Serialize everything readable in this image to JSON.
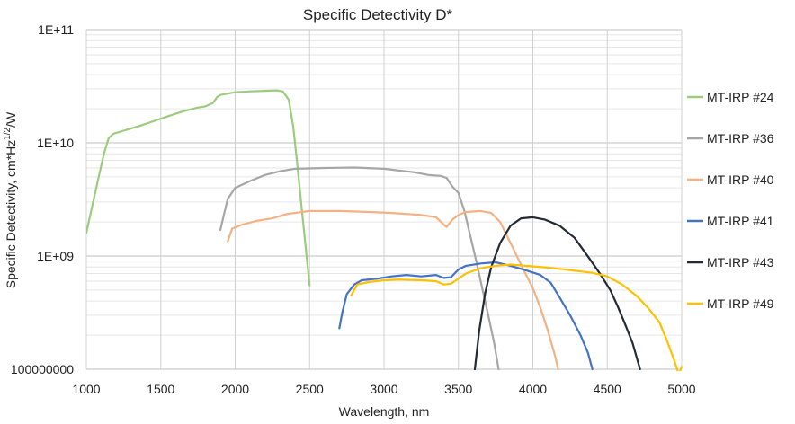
{
  "chart_data": {
    "type": "line",
    "title": "Specific Detectivity D*",
    "xlabel": "Wavelength, nm",
    "ylabel_parts": [
      "Specific Detectivity, cm*Hz",
      "1/2",
      "/W"
    ],
    "xlim": [
      1000,
      5000
    ],
    "ylim": [
      100000000,
      100000000000
    ],
    "yscale": "log",
    "x_ticks": [
      1000,
      1500,
      2000,
      2500,
      3000,
      3500,
      4000,
      4500,
      5000
    ],
    "x_tick_labels": [
      "1000",
      "1500",
      "2000",
      "2500",
      "3000",
      "3500",
      "4000",
      "4500",
      "5000"
    ],
    "y_tick_labels": [
      "100000000",
      "1E+09",
      "1E+10",
      "1E+11"
    ],
    "grid": true,
    "legend_position": "right",
    "series": [
      {
        "name": "MT-IRP #24",
        "color": "#9DCB7E",
        "points": [
          [
            1000,
            1600000000.0
          ],
          [
            1020,
            2100000000.0
          ],
          [
            1050,
            3200000000.0
          ],
          [
            1080,
            4800000000.0
          ],
          [
            1120,
            8200000000.0
          ],
          [
            1150,
            11000000000.0
          ],
          [
            1180,
            12000000000.0
          ],
          [
            1250,
            12800000000.0
          ],
          [
            1350,
            14000000000.0
          ],
          [
            1450,
            15500000000.0
          ],
          [
            1550,
            17200000000.0
          ],
          [
            1650,
            19000000000.0
          ],
          [
            1750,
            20500000000.0
          ],
          [
            1800,
            21000000000.0
          ],
          [
            1850,
            22500000000.0
          ],
          [
            1880,
            25500000000.0
          ],
          [
            1900,
            26500000000.0
          ],
          [
            1950,
            27200000000.0
          ],
          [
            2000,
            28000000000.0
          ],
          [
            2100,
            28500000000.0
          ],
          [
            2200,
            28800000000.0
          ],
          [
            2280,
            29000000000.0
          ],
          [
            2320,
            28500000000.0
          ],
          [
            2360,
            24000000000.0
          ],
          [
            2390,
            14000000000.0
          ],
          [
            2420,
            6000000000.0
          ],
          [
            2450,
            2400000000.0
          ],
          [
            2480,
            1000000000.0
          ],
          [
            2500,
            550000000.0
          ]
        ]
      },
      {
        "name": "MT-IRP #36",
        "color": "#A6A6A6",
        "points": [
          [
            1900,
            1700000000.0
          ],
          [
            1920,
            2200000000.0
          ],
          [
            1950,
            3200000000.0
          ],
          [
            2000,
            4000000000.0
          ],
          [
            2100,
            4600000000.0
          ],
          [
            2200,
            5200000000.0
          ],
          [
            2300,
            5600000000.0
          ],
          [
            2400,
            5900000000.0
          ],
          [
            2600,
            6000000000.0
          ],
          [
            2800,
            6050000000.0
          ],
          [
            3000,
            5900000000.0
          ],
          [
            3100,
            5700000000.0
          ],
          [
            3200,
            5500000000.0
          ],
          [
            3300,
            5200000000.0
          ],
          [
            3380,
            5100000000.0
          ],
          [
            3420,
            4900000000.0
          ],
          [
            3460,
            4100000000.0
          ],
          [
            3500,
            3600000000.0
          ],
          [
            3540,
            2500000000.0
          ],
          [
            3580,
            1500000000.0
          ],
          [
            3620,
            900000000.0
          ],
          [
            3660,
            520000000.0
          ],
          [
            3700,
            300000000.0
          ],
          [
            3740,
            170000000.0
          ],
          [
            3770,
            100000000.0
          ]
        ]
      },
      {
        "name": "MT-IRP #40",
        "color": "#F4B183",
        "points": [
          [
            1950,
            1350000000.0
          ],
          [
            1980,
            1750000000.0
          ],
          [
            2050,
            1900000000.0
          ],
          [
            2150,
            2050000000.0
          ],
          [
            2250,
            2150000000.0
          ],
          [
            2350,
            2350000000.0
          ],
          [
            2500,
            2500000000.0
          ],
          [
            2700,
            2500000000.0
          ],
          [
            2900,
            2450000000.0
          ],
          [
            3050,
            2400000000.0
          ],
          [
            3150,
            2350000000.0
          ],
          [
            3250,
            2300000000.0
          ],
          [
            3350,
            2200000000.0
          ],
          [
            3420,
            1800000000.0
          ],
          [
            3460,
            2100000000.0
          ],
          [
            3500,
            2300000000.0
          ],
          [
            3550,
            2450000000.0
          ],
          [
            3650,
            2500000000.0
          ],
          [
            3720,
            2400000000.0
          ],
          [
            3780,
            2000000000.0
          ],
          [
            3850,
            1300000000.0
          ],
          [
            3900,
            950000000.0
          ],
          [
            3950,
            700000000.0
          ],
          [
            4000,
            520000000.0
          ],
          [
            4050,
            350000000.0
          ],
          [
            4100,
            220000000.0
          ],
          [
            4150,
            130000000.0
          ],
          [
            4170,
            100000000.0
          ]
        ]
      },
      {
        "name": "MT-IRP #41",
        "color": "#4472C4",
        "points": [
          [
            2700,
            230000000.0
          ],
          [
            2720,
            320000000.0
          ],
          [
            2750,
            460000000.0
          ],
          [
            2800,
            560000000.0
          ],
          [
            2850,
            610000000.0
          ],
          [
            2950,
            630000000.0
          ],
          [
            3050,
            660000000.0
          ],
          [
            3150,
            680000000.0
          ],
          [
            3250,
            660000000.0
          ],
          [
            3350,
            680000000.0
          ],
          [
            3400,
            640000000.0
          ],
          [
            3450,
            650000000.0
          ],
          [
            3500,
            760000000.0
          ],
          [
            3550,
            820000000.0
          ],
          [
            3650,
            860000000.0
          ],
          [
            3750,
            880000000.0
          ],
          [
            3850,
            820000000.0
          ],
          [
            3950,
            750000000.0
          ],
          [
            4050,
            680000000.0
          ],
          [
            4120,
            580000000.0
          ],
          [
            4180,
            430000000.0
          ],
          [
            4250,
            300000000.0
          ],
          [
            4320,
            200000000.0
          ],
          [
            4370,
            140000000.0
          ],
          [
            4400,
            100000000.0
          ]
        ]
      },
      {
        "name": "MT-IRP #43",
        "color": "#222B35",
        "points": [
          [
            3610,
            100000000.0
          ],
          [
            3640,
            220000000.0
          ],
          [
            3680,
            470000000.0
          ],
          [
            3720,
            800000000.0
          ],
          [
            3780,
            1300000000.0
          ],
          [
            3850,
            1850000000.0
          ],
          [
            3920,
            2150000000.0
          ],
          [
            4000,
            2200000000.0
          ],
          [
            4080,
            2100000000.0
          ],
          [
            4180,
            1850000000.0
          ],
          [
            4280,
            1450000000.0
          ],
          [
            4380,
            950000000.0
          ],
          [
            4450,
            700000000.0
          ],
          [
            4520,
            500000000.0
          ],
          [
            4570,
            360000000.0
          ],
          [
            4620,
            250000000.0
          ],
          [
            4670,
            170000000.0
          ],
          [
            4720,
            100000000.0
          ]
        ]
      },
      {
        "name": "MT-IRP #49",
        "color": "#FFC000",
        "points": [
          [
            2780,
            450000000.0
          ],
          [
            2820,
            560000000.0
          ],
          [
            2900,
            590000000.0
          ],
          [
            3000,
            610000000.0
          ],
          [
            3100,
            620000000.0
          ],
          [
            3250,
            610000000.0
          ],
          [
            3350,
            600000000.0
          ],
          [
            3400,
            560000000.0
          ],
          [
            3450,
            570000000.0
          ],
          [
            3550,
            700000000.0
          ],
          [
            3650,
            780000000.0
          ],
          [
            3750,
            820000000.0
          ],
          [
            3850,
            840000000.0
          ],
          [
            3950,
            820000000.0
          ],
          [
            4100,
            790000000.0
          ],
          [
            4250,
            750000000.0
          ],
          [
            4400,
            710000000.0
          ],
          [
            4500,
            660000000.0
          ],
          [
            4600,
            560000000.0
          ],
          [
            4700,
            440000000.0
          ],
          [
            4780,
            340000000.0
          ],
          [
            4850,
            260000000.0
          ],
          [
            4900,
            180000000.0
          ],
          [
            4950,
            120000000.0
          ],
          [
            4980,
            90000000.0
          ],
          [
            5000,
            105000000.0
          ]
        ]
      }
    ]
  }
}
